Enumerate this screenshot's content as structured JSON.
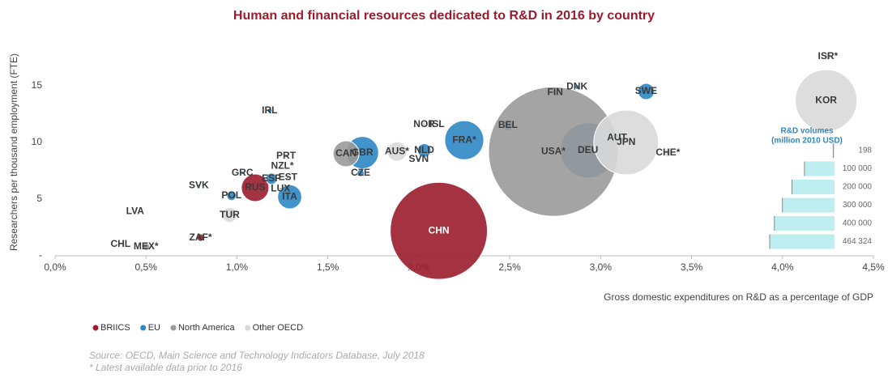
{
  "chart_data": {
    "type": "bubble",
    "title": "Human and financial resources dedicated to R&D in 2016 by country",
    "x_label": "Gross domestic expenditures on R&D as a percentage of GDP",
    "y_label": "Researchers per thousand employment (FTE)",
    "xlim": [
      0,
      4.5
    ],
    "xticks": [
      {
        "value": 0,
        "label": "0,0%"
      },
      {
        "value": 0.5,
        "label": "0,5%"
      },
      {
        "value": 1,
        "label": "1,0%"
      },
      {
        "value": 1.5,
        "label": "1,5%"
      },
      {
        "value": 2,
        "label": "2,0%"
      },
      {
        "value": 2.5,
        "label": "2,5%"
      },
      {
        "value": 3,
        "label": "3,0%"
      },
      {
        "value": 3.5,
        "label": "3,5%"
      },
      {
        "value": 4,
        "label": "4,0%"
      },
      {
        "value": 4.5,
        "label": "4,5%"
      }
    ],
    "ylim": [
      0,
      18.5
    ],
    "yticks": [
      {
        "value": 0,
        "label": "-"
      },
      5,
      10,
      15
    ],
    "legend": "bottom-left",
    "series": [
      {
        "name": "BRIICS",
        "color": "#9b1c2c",
        "labels": [
          "CHN",
          "RUS",
          "ZAF*"
        ],
        "x": [
          2.11,
          1.1,
          0.8
        ],
        "values": [
          2.2,
          6.0,
          1.6
        ],
        "sizes": [
          261000,
          21000,
          1500
        ]
      },
      {
        "name": "EU",
        "color": "#2c87c3",
        "labels": [
          "DEU",
          "FRA*",
          "GBR",
          "ITA",
          "SWE",
          "NLD",
          "ESP",
          "BEL",
          "POL",
          "AUT",
          "CZE",
          "FIN",
          "DNK",
          "IRL",
          "PRT",
          "GRC",
          "SVN",
          "SVK",
          "EST",
          "LUX"
        ],
        "x": [
          2.93,
          2.25,
          1.69,
          1.29,
          3.25,
          2.03,
          1.19,
          2.49,
          0.97,
          3.09,
          1.68,
          2.75,
          2.87,
          1.18,
          1.27,
          1.03,
          2.0,
          0.79,
          1.28,
          1.24
        ],
        "values": [
          9.3,
          10.2,
          9.1,
          5.2,
          14.5,
          9.3,
          6.8,
          11.5,
          5.3,
          10.4,
          7.3,
          14.4,
          14.9,
          12.8,
          8.8,
          7.3,
          8.5,
          6.2,
          6.9,
          5.9
        ],
        "sizes": [
          84000,
          42000,
          29000,
          16000,
          7300,
          5000,
          3500,
          3000,
          2500,
          1500,
          1400,
          900,
          600,
          700,
          300,
          300,
          200,
          200,
          100,
          100
        ]
      },
      {
        "name": "North America",
        "color": "#9a9a9a",
        "labels": [
          "USA*",
          "CAN",
          "MEX*"
        ],
        "x": [
          2.74,
          1.6,
          0.5
        ],
        "values": [
          9.2,
          9.0,
          0.8
        ],
        "sizes": [
          464324,
          18500,
          1500
        ]
      },
      {
        "name": "Other OECD",
        "color": "#d9d9d9",
        "labels": [
          "JPN",
          "KOR",
          "AUS*",
          "TUR",
          "CHE*",
          "ISR*",
          "NOR",
          "NZL*",
          "CHL",
          "ISL",
          "LVA"
        ],
        "x": [
          3.14,
          4.24,
          1.88,
          0.96,
          3.37,
          4.25,
          2.03,
          1.25,
          0.36,
          2.1,
          0.44
        ],
        "values": [
          10.0,
          13.7,
          9.2,
          3.6,
          9.1,
          17.6,
          11.6,
          7.9,
          1.0,
          11.6,
          3.9
        ],
        "sizes": [
          116000,
          105000,
          10400,
          6000,
          1800,
          1500,
          800,
          200,
          200,
          100,
          50
        ]
      }
    ],
    "size_legend": {
      "title": [
        "R&D volumes",
        "(million 2010 USD)"
      ],
      "values": [
        198,
        100000,
        200000,
        300000,
        400000,
        464324
      ],
      "value_labels": [
        "198",
        "100 000",
        "200 000",
        "300 000",
        "400 000",
        "464 324"
      ]
    },
    "notes": [
      "Source: OECD, Main Science and Technology Indicators Database, July 2018",
      "* Latest available data prior to 2016"
    ]
  }
}
